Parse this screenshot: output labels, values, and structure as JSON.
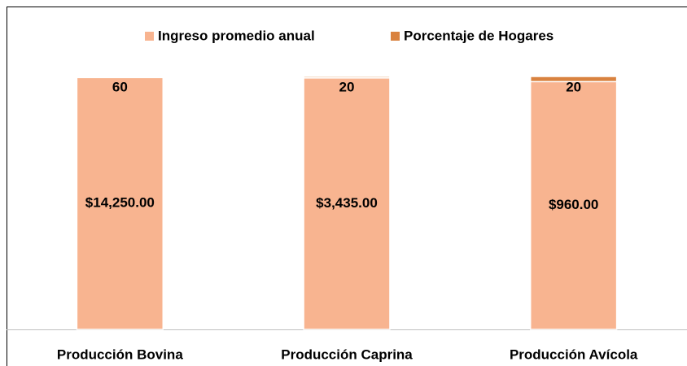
{
  "chart_data": {
    "type": "bar",
    "stacked": "percent",
    "categories": [
      "Producción Bovina",
      "Producción Caprina",
      "Producción Avícola"
    ],
    "series": [
      {
        "name": "Ingreso promedio anual",
        "color": "#f8b490",
        "values": [
          14250,
          3435,
          960
        ],
        "value_labels": [
          "$14,250.00",
          "$3,435.00",
          "$960.00"
        ]
      },
      {
        "name": "Porcentaje de Hogares",
        "color": "#d9823f",
        "values": [
          60,
          20,
          20
        ]
      }
    ],
    "legend": "top"
  }
}
